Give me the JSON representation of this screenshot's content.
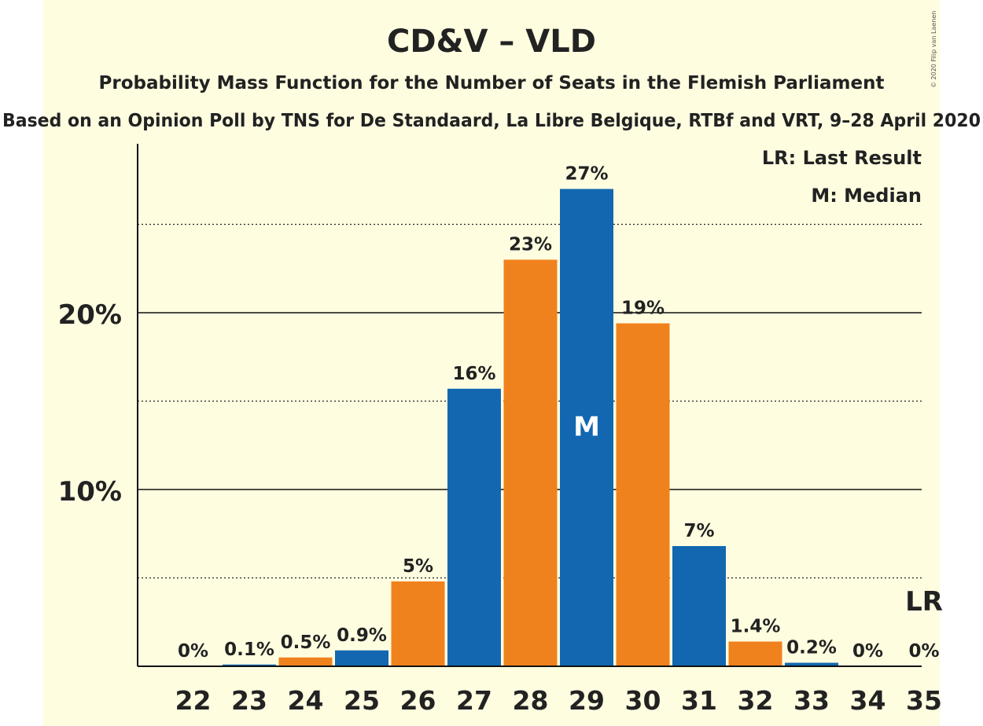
{
  "chart_data": {
    "type": "bar",
    "title": "CD&V – VLD",
    "subtitle": "Probability Mass Function for the Number of Seats in the Flemish Parliament",
    "source_line": "Based on an Opinion Poll by TNS for De Standaard, La Libre Belgique, RTBf and VRT, 9–28 April 2020",
    "copyright": "© 2020 Filip van Laenen",
    "legend": {
      "placement": "top-right",
      "entries": [
        "LR: Last Result",
        "M: Median"
      ]
    },
    "categories": [
      "22",
      "23",
      "24",
      "25",
      "26",
      "27",
      "28",
      "29",
      "30",
      "31",
      "32",
      "33",
      "34",
      "35"
    ],
    "values": [
      0,
      0.1,
      0.5,
      0.9,
      4.8,
      15.7,
      23.0,
      27.0,
      19.4,
      6.8,
      1.4,
      0.2,
      0,
      0
    ],
    "value_labels": [
      "0%",
      "0.1%",
      "0.5%",
      "0.9%",
      "5%",
      "16%",
      "23%",
      "27%",
      "19%",
      "7%",
      "1.4%",
      "0.2%",
      "0%",
      "0%"
    ],
    "bar_colors": [
      "#1267b0",
      "#1267b0",
      "#f0821e",
      "#1267b0",
      "#f0821e",
      "#1267b0",
      "#f0821e",
      "#1267b0",
      "#f0821e",
      "#1267b0",
      "#f0821e",
      "#1267b0",
      "#1267b0",
      "#1267b0"
    ],
    "yticks": [
      {
        "value": 10,
        "label": "10%"
      },
      {
        "value": 20,
        "label": "20%"
      }
    ],
    "ygrid_minor": [
      5,
      15,
      25
    ],
    "ylim": [
      0,
      29.5
    ],
    "median_seat": "29",
    "median_marker": "M",
    "last_result_seat": "35",
    "last_result_marker": "LR",
    "xlabel": "",
    "ylabel": ""
  }
}
